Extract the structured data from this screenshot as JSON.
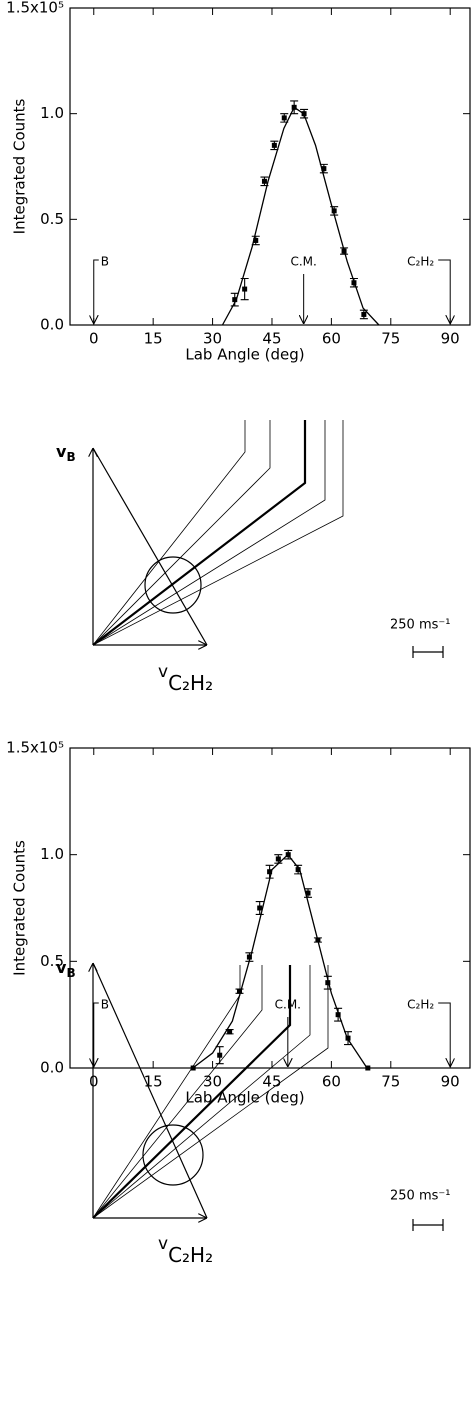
{
  "chart_data": [
    {
      "type": "scatter",
      "xlabel": "Lab Angle (deg)",
      "ylabel": "Integrated Counts",
      "xlim": [
        -6,
        95
      ],
      "xticks": [
        0,
        15,
        30,
        45,
        60,
        75,
        90
      ],
      "ylim": [
        0,
        1.5
      ],
      "yticks": [
        {
          "value": 0,
          "label": "0.0"
        },
        {
          "value": 0.5,
          "label": "0.5"
        },
        {
          "value": 1,
          "label": "1.0"
        },
        {
          "value": 1.5,
          "label": "1.5x10⁵"
        }
      ],
      "series": [
        {
          "mode": "markers",
          "color": "#000000",
          "x": [
            35.6,
            38.1,
            40.9,
            43.1,
            45.6,
            48.1,
            50.6,
            53.1,
            58.1,
            60.7,
            63.2,
            65.7,
            68.2
          ],
          "values": [
            0.12,
            0.17,
            0.4,
            0.68,
            0.85,
            0.98,
            1.03,
            1.0,
            0.74,
            0.54,
            0.35,
            0.2,
            0.05
          ],
          "errors": [
            0.03,
            0.05,
            0.02,
            0.02,
            0.02,
            0.02,
            0.03,
            0.02,
            0.02,
            0.02,
            0.015,
            0.02,
            0.02
          ]
        },
        {
          "mode": "line",
          "color": "#000000",
          "x": [
            32.5,
            36,
            40,
            44,
            48,
            50.6,
            53,
            56,
            60,
            64,
            68,
            72
          ],
          "values": [
            0,
            0.12,
            0.37,
            0.68,
            0.93,
            1.03,
            1.0,
            0.85,
            0.57,
            0.3,
            0.08,
            0
          ]
        }
      ],
      "annotations": [
        {
          "text": "B",
          "x": 0
        },
        {
          "text": "C.M.",
          "x": 53
        },
        {
          "text": "C₂H₂",
          "x": 90
        }
      ]
    },
    {
      "type": "scatter",
      "xlabel": "Lab Angle (deg)",
      "ylabel": "Integrated Counts",
      "xlim": [
        -6,
        95
      ],
      "xticks": [
        0,
        15,
        30,
        45,
        60,
        75,
        90
      ],
      "ylim": [
        0,
        1.5
      ],
      "yticks": [
        {
          "value": 0,
          "label": "0.0"
        },
        {
          "value": 0.5,
          "label": "0.5"
        },
        {
          "value": 1,
          "label": "1.0"
        },
        {
          "value": 1.5,
          "label": "1.5x10⁵"
        }
      ],
      "series": [
        {
          "mode": "markers",
          "color": "#000000",
          "x": [
            25.1,
            31.8,
            34.3,
            36.8,
            39.3,
            41.9,
            44.4,
            46.6,
            49.1,
            51.6,
            54.1,
            56.6,
            59.1,
            61.7,
            64.2,
            69.2
          ],
          "values": [
            0,
            0.06,
            0.17,
            0.36,
            0.52,
            0.75,
            0.92,
            0.98,
            1.0,
            0.93,
            0.82,
            0.6,
            0.4,
            0.25,
            0.14,
            0
          ],
          "errors": [
            0,
            0.04,
            0.01,
            0.01,
            0.02,
            0.03,
            0.03,
            0.02,
            0.02,
            0.02,
            0.02,
            0.01,
            0.03,
            0.03,
            0.03,
            0
          ]
        },
        {
          "mode": "line",
          "color": "#000000",
          "x": [
            25,
            30,
            35,
            40,
            45,
            49,
            52,
            56,
            60,
            64,
            69
          ],
          "values": [
            0,
            0.07,
            0.22,
            0.55,
            0.93,
            1.0,
            0.93,
            0.64,
            0.35,
            0.14,
            0
          ]
        }
      ],
      "annotations": [
        {
          "text": "B",
          "x": 0
        },
        {
          "text": "C.M.",
          "x": 49
        },
        {
          "text": "C₂H₂",
          "x": 90
        }
      ]
    }
  ],
  "diagrams": [
    {
      "beam": {
        "symbol": "v",
        "subscript": "B"
      },
      "target": {
        "symbol": "v",
        "subscript": "C₂H₂"
      },
      "scale": "250 ms⁻¹"
    },
    {
      "beam": {
        "symbol": "v",
        "subscript": "B"
      },
      "target": {
        "symbol": "v",
        "subscript": "C₂H₂"
      },
      "scale": "250 ms⁻¹"
    }
  ]
}
